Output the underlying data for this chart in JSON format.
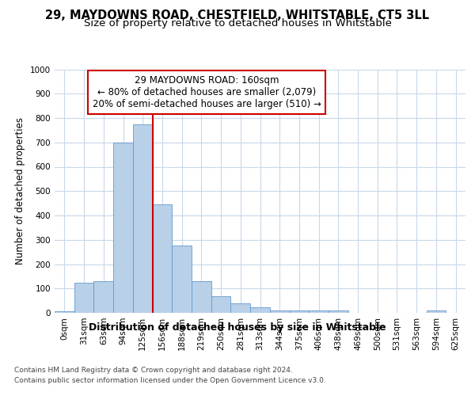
{
  "title1": "29, MAYDOWNS ROAD, CHESTFIELD, WHITSTABLE, CT5 3LL",
  "title2": "Size of property relative to detached houses in Whitstable",
  "xlabel": "Distribution of detached houses by size in Whitstable",
  "ylabel": "Number of detached properties",
  "bar_color": "#b8d0e8",
  "bar_edge_color": "#6699cc",
  "categories": [
    "0sqm",
    "31sqm",
    "63sqm",
    "94sqm",
    "125sqm",
    "156sqm",
    "188sqm",
    "219sqm",
    "250sqm",
    "281sqm",
    "313sqm",
    "344sqm",
    "375sqm",
    "406sqm",
    "438sqm",
    "469sqm",
    "500sqm",
    "531sqm",
    "563sqm",
    "594sqm",
    "625sqm"
  ],
  "values": [
    5,
    125,
    130,
    700,
    775,
    445,
    275,
    130,
    68,
    40,
    22,
    10,
    10,
    10,
    10,
    0,
    0,
    0,
    0,
    10,
    0
  ],
  "ylim": [
    0,
    1000
  ],
  "yticks": [
    0,
    100,
    200,
    300,
    400,
    500,
    600,
    700,
    800,
    900,
    1000
  ],
  "vline_x": 5,
  "vline_color": "#cc0000",
  "annotation_text": "29 MAYDOWNS ROAD: 160sqm\n← 80% of detached houses are smaller (2,079)\n20% of semi-detached houses are larger (510) →",
  "annotation_box_color": "#cc0000",
  "footer1": "Contains HM Land Registry data © Crown copyright and database right 2024.",
  "footer2": "Contains public sector information licensed under the Open Government Licence v3.0.",
  "bg_color": "#ffffff",
  "grid_color": "#c8d8e8",
  "title1_fontsize": 10.5,
  "title2_fontsize": 9.5,
  "xlabel_fontsize": 9,
  "ylabel_fontsize": 8.5,
  "tick_fontsize": 7.5,
  "footer_fontsize": 6.5,
  "ann_fontsize": 8.5
}
